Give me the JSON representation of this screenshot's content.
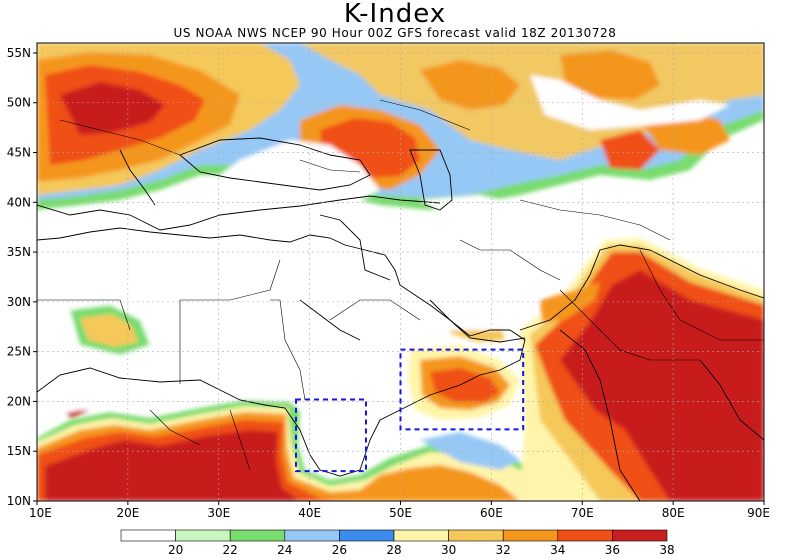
{
  "title": "K-Index",
  "subtitle": "US NOAA NWS NCEP 90 Hour 00Z GFS forecast valid 18Z 20130728",
  "lat_labels": [
    "10N",
    "15N",
    "20N",
    "25N",
    "30N",
    "35N",
    "40N",
    "45N",
    "50N",
    "55N"
  ],
  "lat_values": [
    10,
    15,
    20,
    25,
    30,
    35,
    40,
    45,
    50,
    55
  ],
  "lon_labels": [
    "10E",
    "20E",
    "30E",
    "40E",
    "50E",
    "60E",
    "70E",
    "80E",
    "90E"
  ],
  "lon_values": [
    10,
    20,
    30,
    40,
    50,
    60,
    70,
    80,
    90
  ],
  "extent": {
    "lon": [
      10,
      90
    ],
    "lat": [
      10,
      56
    ]
  },
  "colorbar": {
    "thresholds": [
      "20",
      "22",
      "24",
      "26",
      "28",
      "30",
      "32",
      "34",
      "36",
      "38"
    ],
    "colors": [
      "#ffffff",
      "#c8f5c0",
      "#78dc6e",
      "#96c8f5",
      "#3c8cf0",
      "#fff5aa",
      "#f5c85a",
      "#f5961e",
      "#f05014",
      "#c81e1e"
    ]
  },
  "highlight_boxes": [
    {
      "name": "red-sea-box",
      "lon": [
        38.5,
        46.2
      ],
      "lat": [
        13.0,
        20.2
      ]
    },
    {
      "name": "arabian-sea-box",
      "lon": [
        50.0,
        63.5
      ],
      "lat": [
        17.2,
        25.2
      ]
    }
  ]
}
